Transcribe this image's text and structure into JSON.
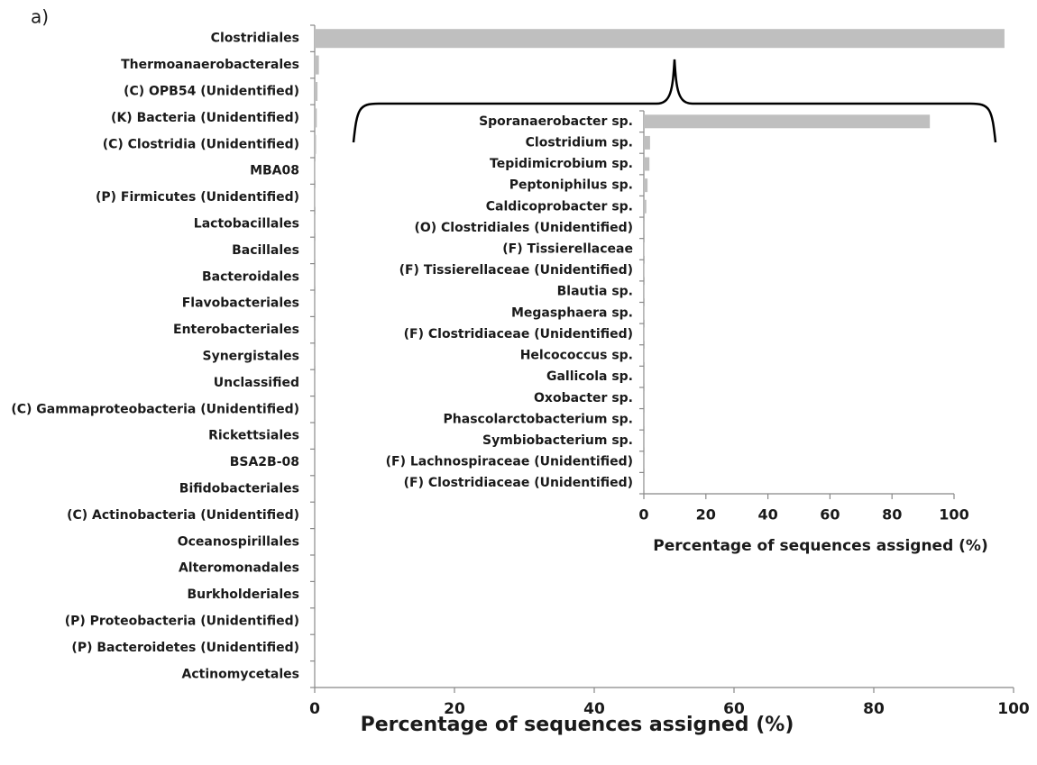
{
  "panel_label": "a)",
  "chart_data": [
    {
      "type": "bar",
      "orientation": "horizontal",
      "x_label": "Percentage of sequences assigned (%)",
      "categories": [
        "Clostridiales",
        "Thermoanaerobacterales",
        "(C) OPB54 (Unidentified)",
        "(K) Bacteria (Unidentified)",
        "(C) Clostridia (Unidentified)",
        "MBA08",
        "(P) Firmicutes (Unidentified)",
        "Lactobacillales",
        "Bacillales",
        "Bacteroidales",
        "Flavobacteriales",
        "Enterobacteriales",
        "Synergistales",
        "Unclassified",
        "(C) Gammaproteobacteria (Unidentified)",
        "Rickettsiales",
        "BSA2B-08",
        "Bifidobacteriales",
        "(C) Actinobacteria (Unidentified)",
        "Oceanospirillales",
        "Alteromonadales",
        "Burkholderiales",
        "(P) Proteobacteria (Unidentified)",
        "(P) Bacteroidetes (Unidentified)",
        "Actinomycetales"
      ],
      "values": [
        98.7,
        0.6,
        0.4,
        0.3,
        0.2,
        0.05,
        0.05,
        0.03,
        0.03,
        0.02,
        0.02,
        0.02,
        0.02,
        0.02,
        0.01,
        0.01,
        0.01,
        0.01,
        0.01,
        0.01,
        0.01,
        0.01,
        0.01,
        0.01,
        0.01
      ],
      "color": "#bfbfbf",
      "xlim": [
        0,
        100
      ],
      "xticks": [
        0,
        20,
        40,
        60,
        80,
        100
      ]
    },
    {
      "type": "bar",
      "orientation": "horizontal",
      "x_label": "Percentage of sequences assigned (%)",
      "categories": [
        "Sporanaerobacter sp.",
        "Clostridium sp.",
        "Tepidimicrobium sp.",
        "Peptoniphilus sp.",
        "Caldicoprobacter sp.",
        "(O) Clostridiales  (Unidentified)",
        "(F) Tissierellaceae",
        "(F) Tissierellaceae  (Unidentified)",
        "Blautia sp.",
        "Megasphaera sp.",
        "(F) Clostridiaceae  (Unidentified)",
        "Helcococcus sp.",
        "Gallicola sp.",
        "Oxobacter sp.",
        "Phascolarctobacterium sp.",
        "Symbiobacterium sp.",
        "(F) Lachnospiraceae  (Unidentified)",
        "(F) Clostridiaceae  (Unidentified)"
      ],
      "values": [
        92.2,
        2.0,
        1.8,
        1.2,
        0.8,
        0.3,
        0.2,
        0.2,
        0.1,
        0.1,
        0.1,
        0.1,
        0.05,
        0.05,
        0.05,
        0.05,
        0.05,
        0.05
      ],
      "color": "#bfbfbf",
      "xlim": [
        0,
        100
      ],
      "xticks": [
        0,
        20,
        40,
        60,
        80,
        100
      ]
    }
  ]
}
